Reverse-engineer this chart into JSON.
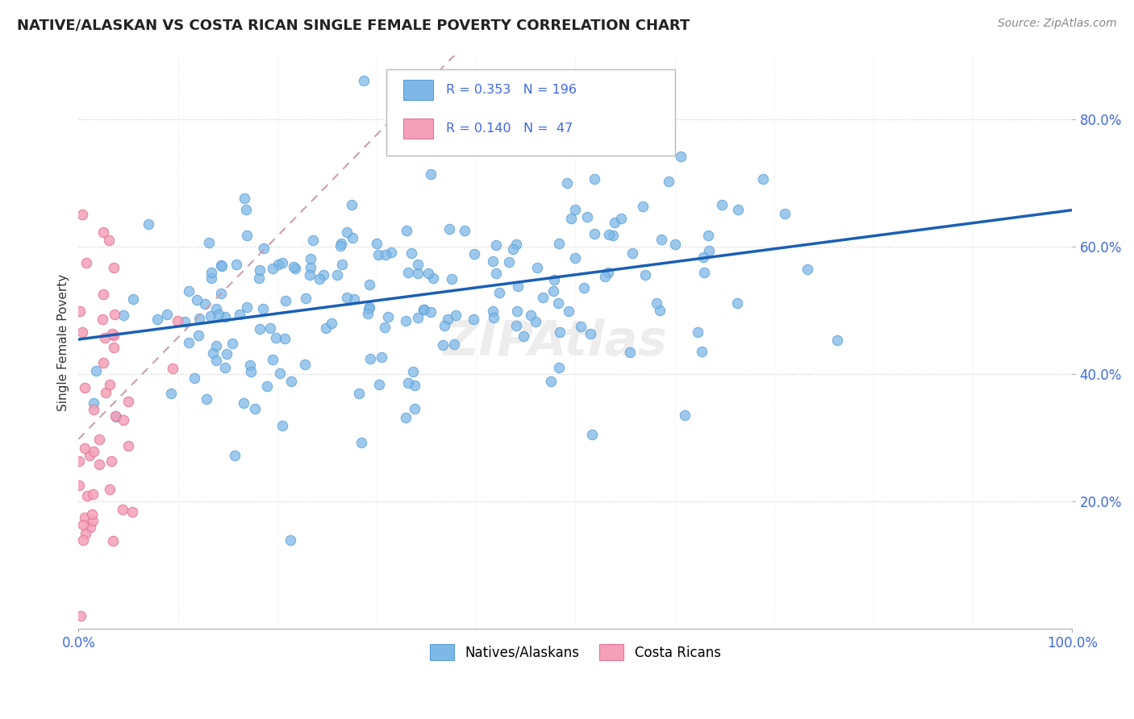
{
  "title": "NATIVE/ALASKAN VS COSTA RICAN SINGLE FEMALE POVERTY CORRELATION CHART",
  "source": "Source: ZipAtlas.com",
  "ylabel": "Single Female Poverty",
  "legend_label_natives": "Natives/Alaskans",
  "legend_label_costa": "Costa Ricans",
  "blue_dot_color": "#7eb8e8",
  "pink_dot_color": "#f4a0b8",
  "blue_line_color": "#1a5fb4",
  "pink_line_color": "#d0a0b0",
  "r_native": 0.353,
  "n_native": 196,
  "r_costa": 0.14,
  "n_costa": 47,
  "title_fontsize": 13,
  "source_fontsize": 10,
  "tick_label_color": "#4169e1",
  "grid_color": "#cccccc",
  "background_color": "#ffffff",
  "watermark": "ZIPAtlas",
  "legend_r_n_color": "#4169e1",
  "legend_box_color": "#dddddd"
}
